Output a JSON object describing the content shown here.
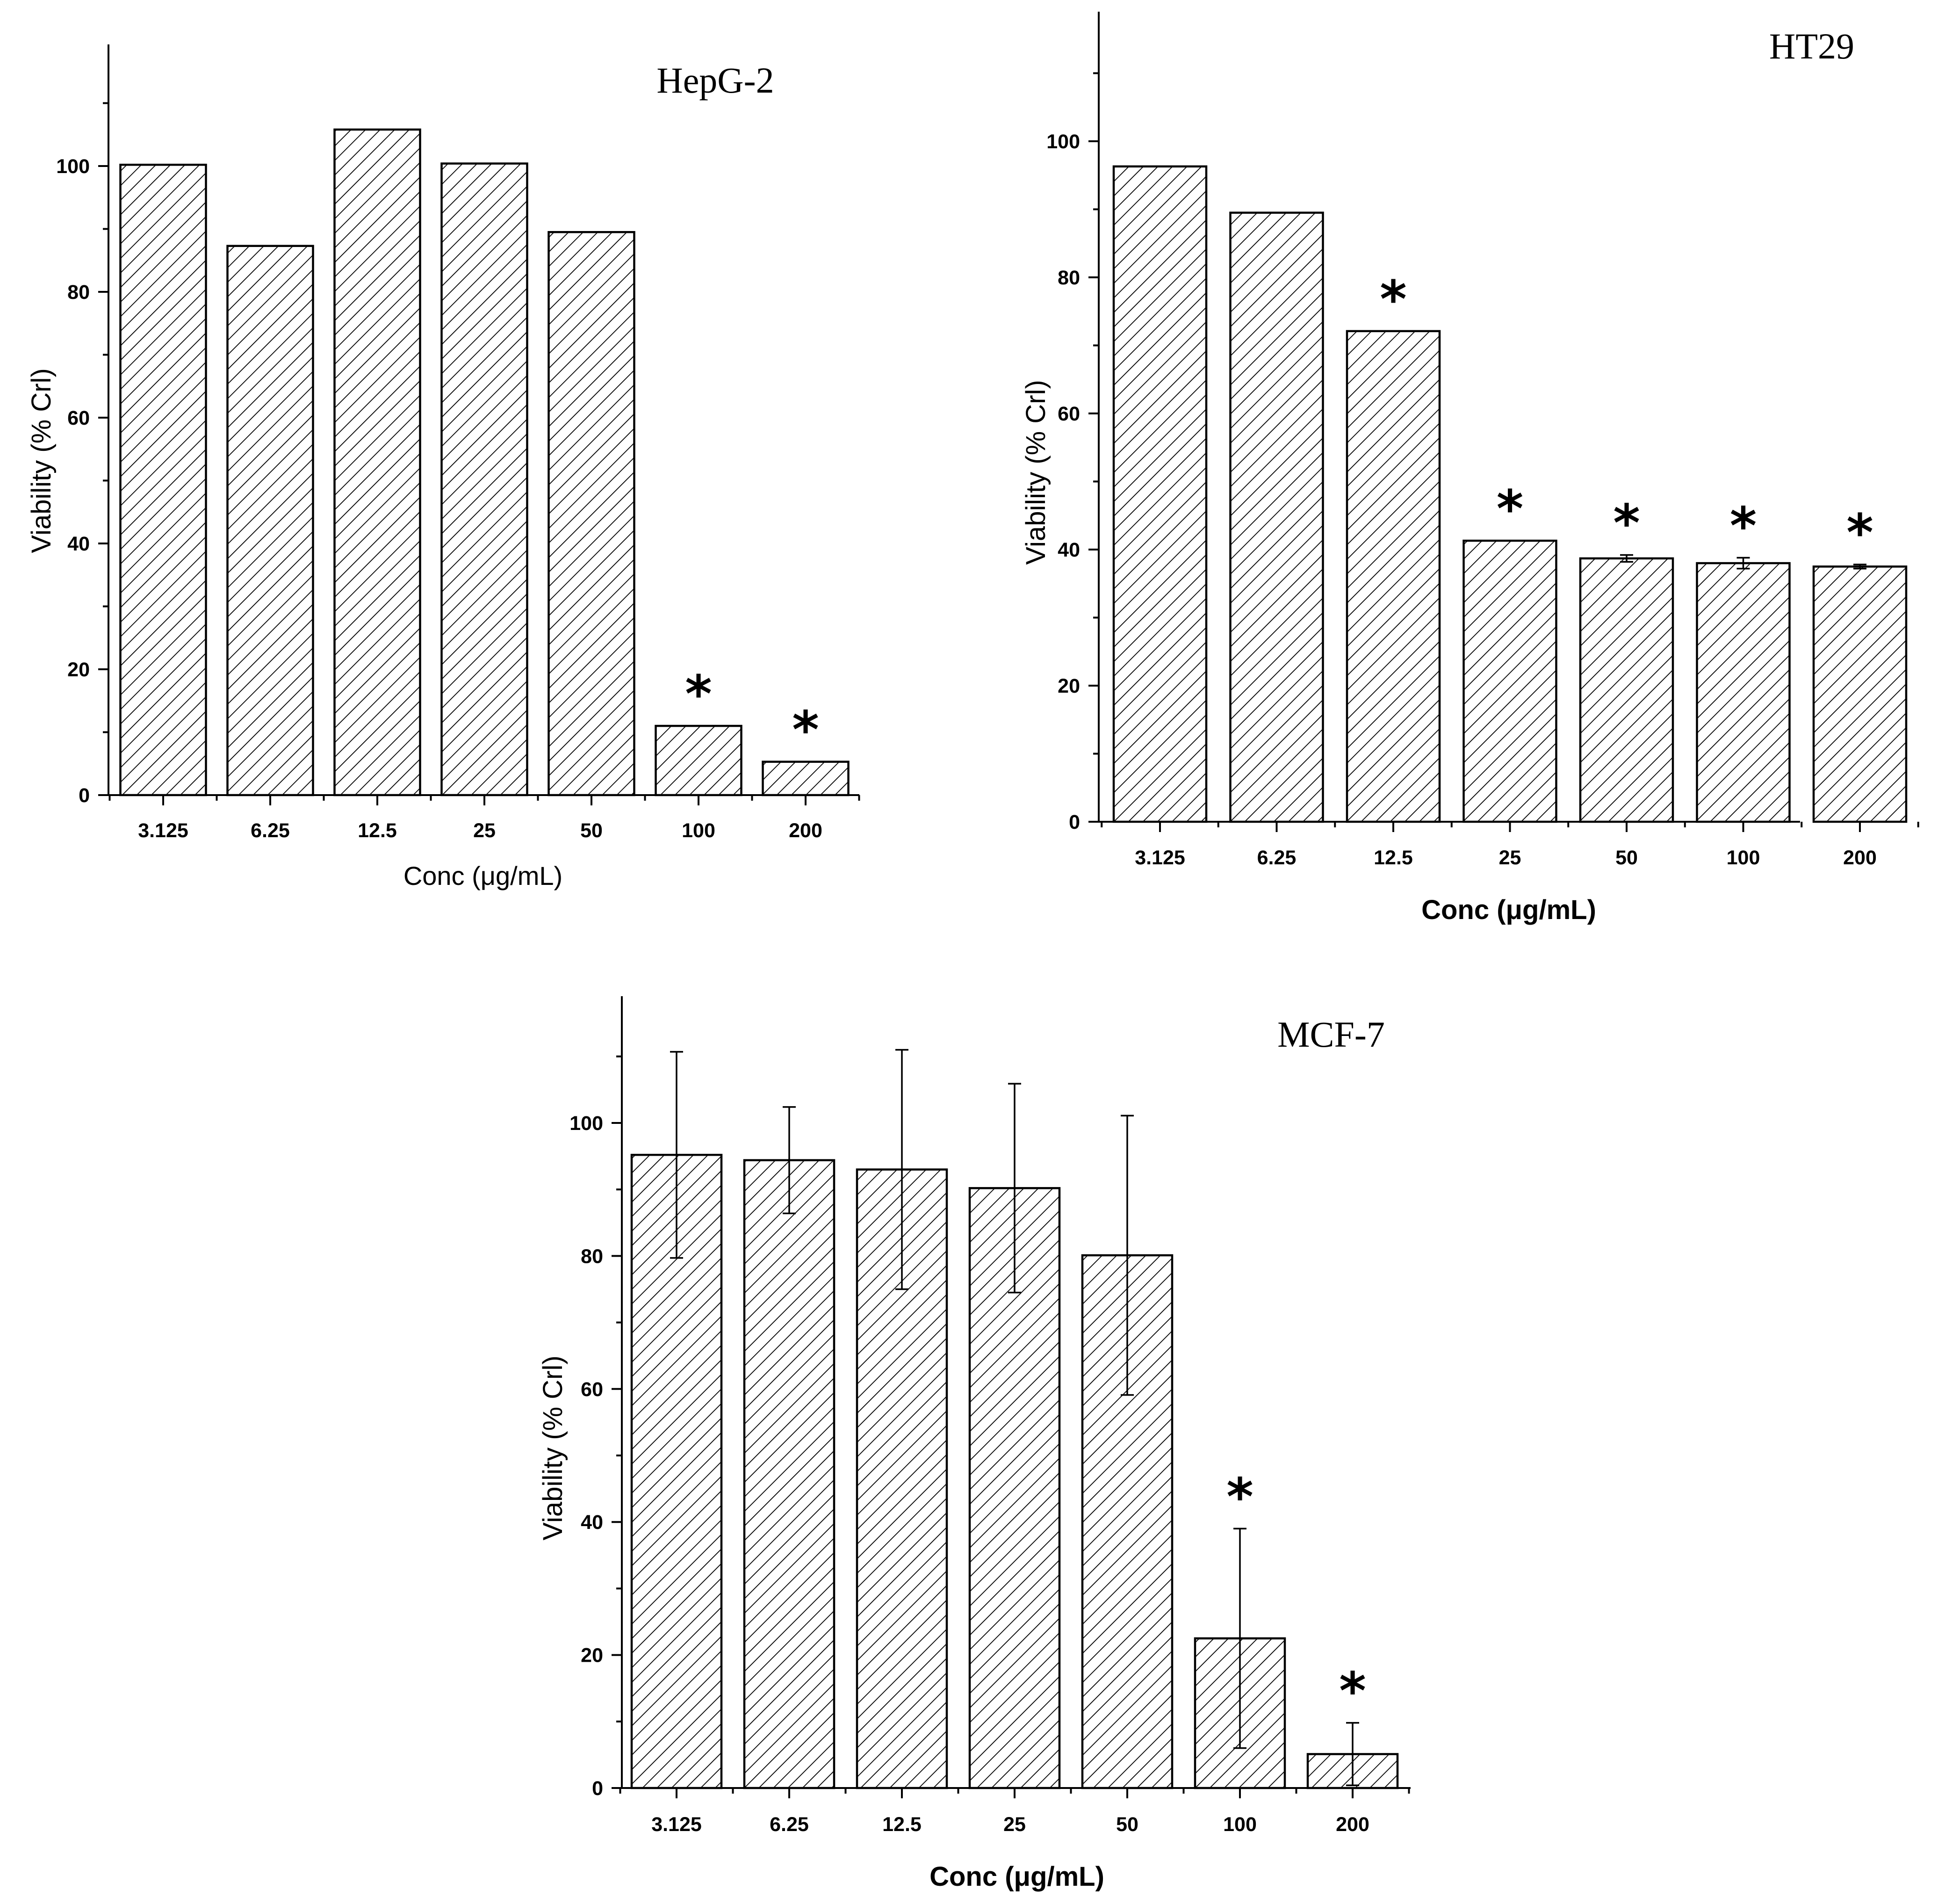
{
  "chart_data": [
    {
      "type": "bar",
      "title": "HepG-2",
      "xlabel": "Conc (μg/mL)",
      "ylabel": "Viability (% Crl)",
      "ylim": [
        0,
        120
      ],
      "yticks": [
        0,
        20,
        40,
        60,
        80,
        100
      ],
      "categories": [
        "3.125",
        "6.25",
        "12.5",
        "25",
        "50",
        "100",
        "200"
      ],
      "values": [
        100.2,
        87.3,
        105.8,
        100.4,
        89.5,
        11.0,
        5.3
      ],
      "errors": [
        null,
        null,
        null,
        null,
        null,
        null,
        null
      ],
      "significance": [
        "",
        "",
        "",
        "",
        "",
        "*",
        "*"
      ]
    },
    {
      "type": "bar",
      "title": "HT29",
      "xlabel": "Conc (μg/mL)",
      "ylabel": "Viability (% Crl)",
      "ylim": [
        0,
        120
      ],
      "yticks": [
        0,
        20,
        40,
        60,
        80,
        100
      ],
      "categories": [
        "3.125",
        "6.25",
        "12.5",
        "25",
        "50",
        "100",
        "200"
      ],
      "values": [
        96.3,
        89.5,
        72.1,
        41.3,
        38.7,
        38.0,
        37.5
      ],
      "errors": [
        null,
        null,
        null,
        null,
        0.5,
        0.8,
        0.3
      ],
      "significance": [
        "",
        "",
        "*",
        "*",
        "*",
        "*",
        "*"
      ]
    },
    {
      "type": "bar",
      "title": "MCF-7",
      "xlabel": "Conc (μg/mL)",
      "ylabel": "Viability (% Crl)",
      "ylim": [
        0,
        120
      ],
      "yticks": [
        0,
        20,
        40,
        60,
        80,
        100
      ],
      "categories": [
        "3.125",
        "6.25",
        "12.5",
        "25",
        "50",
        "100",
        "200"
      ],
      "values": [
        95.2,
        94.4,
        93.0,
        90.2,
        80.1,
        22.5,
        5.1
      ],
      "errors": [
        15.5,
        8.0,
        18.0,
        15.7,
        21.0,
        16.5,
        4.7
      ],
      "significance": [
        "",
        "",
        "",
        "",
        "",
        "*",
        "*"
      ]
    }
  ]
}
